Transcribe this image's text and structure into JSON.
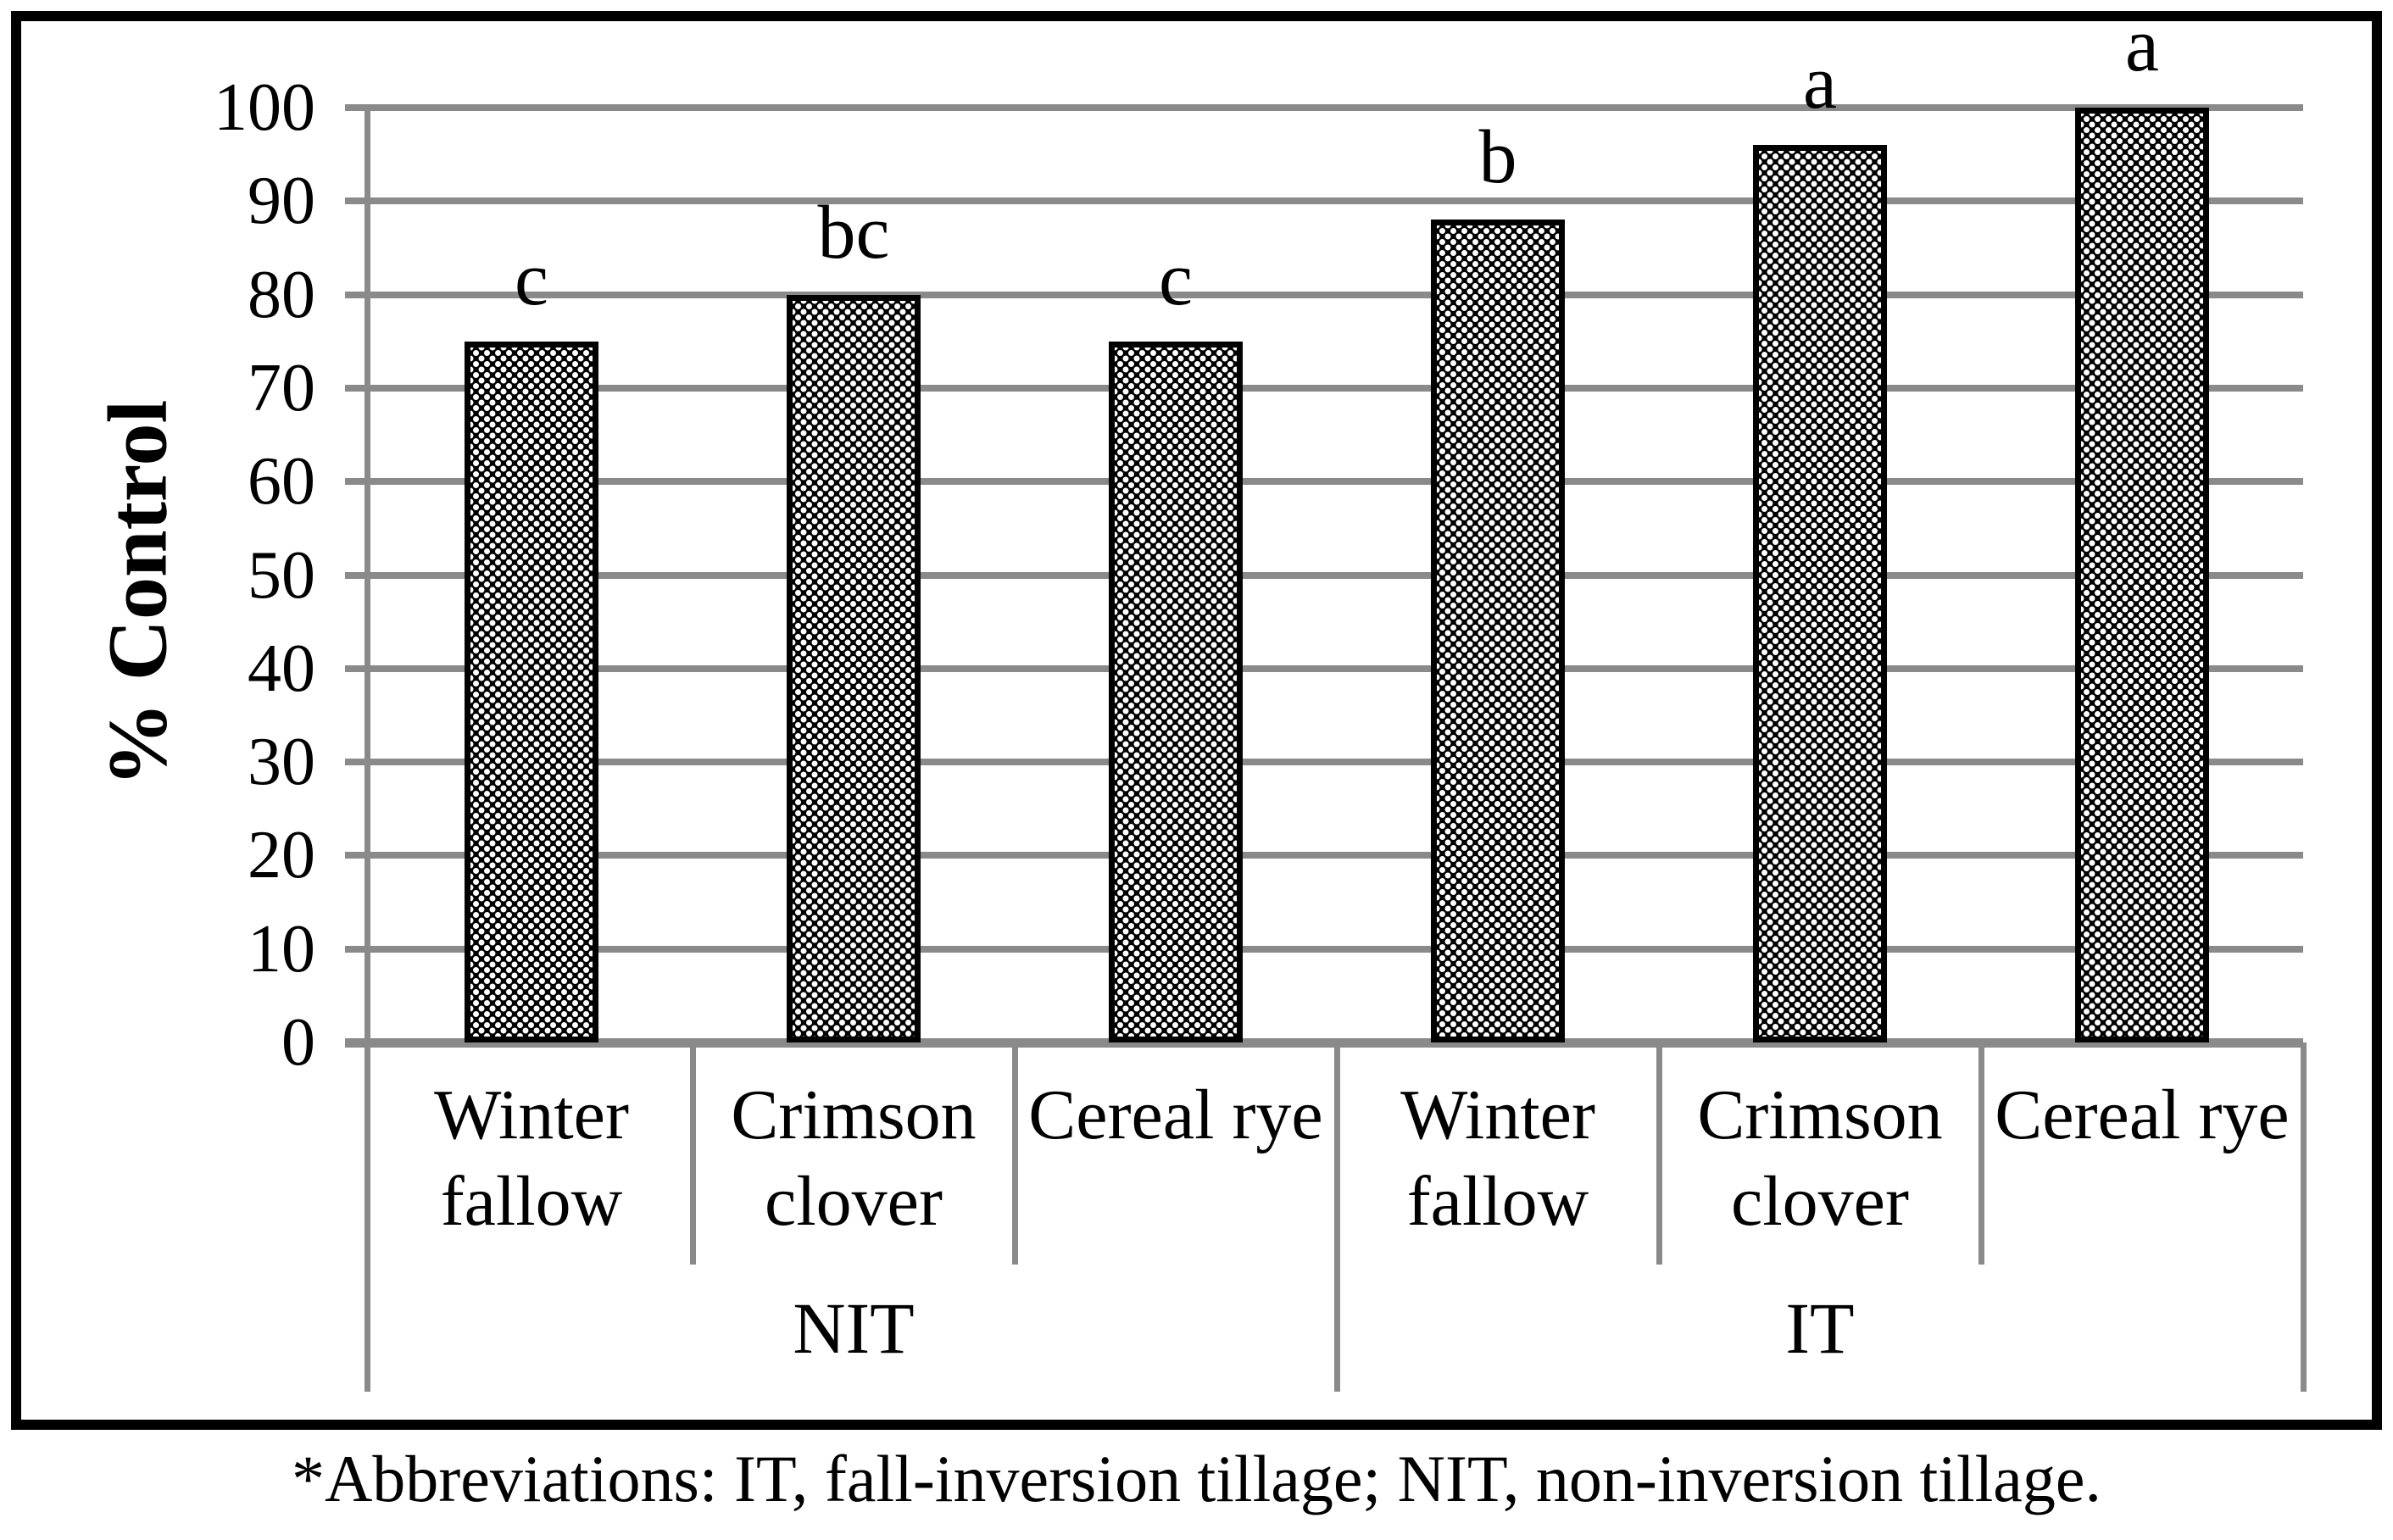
{
  "chart_data": {
    "type": "bar",
    "title": "",
    "ylabel": "% Control",
    "xlabel": "",
    "ylim": [
      0,
      100
    ],
    "yticks": [
      0,
      10,
      20,
      30,
      40,
      50,
      60,
      70,
      80,
      90,
      100
    ],
    "grid": true,
    "legend_position": "none",
    "bar_pattern": "dotted-black-weave",
    "categories": [
      "Winter fallow",
      "Crimson clover",
      "Cereal rye",
      "Winter fallow",
      "Crimson clover",
      "Cereal rye"
    ],
    "groups": [
      {
        "label": "NIT",
        "span": 3
      },
      {
        "label": "IT",
        "span": 3
      }
    ],
    "series": [
      {
        "name": "% Control",
        "values": [
          75,
          80,
          75,
          88,
          96,
          100
        ]
      }
    ],
    "significance_letters": [
      "c",
      "bc",
      "c",
      "b",
      "a",
      "a"
    ],
    "colors": {
      "bar_fill": "#000000",
      "bar_dots": "#ffffff",
      "gridline": "#8a8a8a",
      "frame": "#000000",
      "text": "#000000",
      "background": "#ffffff"
    }
  },
  "footnote": "*Abbreviations: IT, fall-inversion tillage; NIT, non-inversion tillage."
}
